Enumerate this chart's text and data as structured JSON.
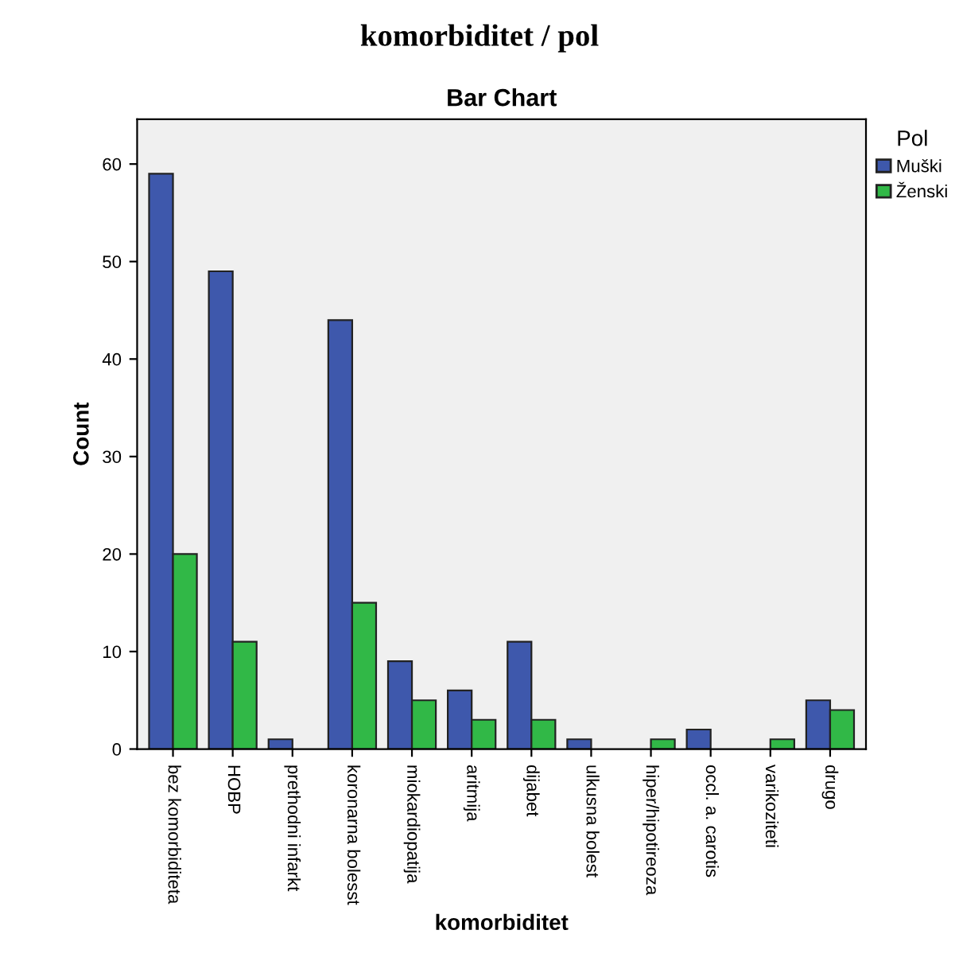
{
  "chart_data": {
    "type": "bar",
    "title": "komorbiditet / pol",
    "subtitle": "Bar Chart",
    "xlabel": "komorbiditet",
    "ylabel": "Count",
    "legend_title": "Pol",
    "categories": [
      "bez komorbiditeta",
      "HOBP",
      "prethodni infarkt",
      "koronarna bolesst",
      "miokardiopatija",
      "aritmija",
      "dijabet",
      "ulkusna bolest",
      "hiper/hipotireoza",
      "occl. a. carotis",
      "varikoziteti",
      "drugo"
    ],
    "series": [
      {
        "name": "Muški",
        "color": "#3e58ac",
        "values": [
          59,
          49,
          1,
          44,
          9,
          6,
          11,
          1,
          null,
          2,
          null,
          5
        ]
      },
      {
        "name": "Ženski",
        "color": "#31b847",
        "values": [
          20,
          11,
          null,
          15,
          5,
          3,
          3,
          null,
          1,
          null,
          1,
          4
        ]
      }
    ],
    "ylim": [
      0,
      64.6
    ],
    "yticks": [
      0,
      10,
      20,
      30,
      40,
      50,
      60
    ],
    "grid": false,
    "legend": "top right"
  }
}
